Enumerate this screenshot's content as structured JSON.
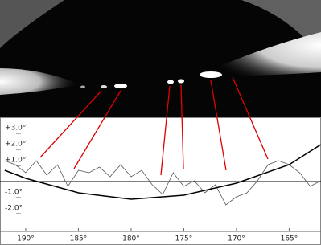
{
  "chart_data": {
    "type": "line",
    "x": [
      192,
      191,
      190,
      189,
      188,
      187,
      186,
      185,
      184,
      183,
      182,
      181,
      180,
      179,
      178,
      177,
      176,
      175,
      174,
      173,
      172,
      171,
      170,
      169,
      168,
      167,
      166,
      165,
      164,
      163,
      162
    ],
    "series": [
      {
        "color": "#555555",
        "values": [
          1.3,
          1.05,
          0.55,
          1.3,
          0.4,
          1.05,
          -0.3,
          0.7,
          0.55,
          0.9,
          0.3,
          1.05,
          0.3,
          0.7,
          -0.2,
          -0.8,
          0.55,
          -0.3,
          0.05,
          -0.7,
          -0.2,
          -1.45,
          -0.95,
          -0.7,
          0.05,
          1.05,
          1.3,
          1.05,
          0.55,
          -0.3,
          0.05
        ]
      },
      {
        "color": "#000000",
        "values": [
          0.7,
          null,
          0.2,
          null,
          null,
          null,
          null,
          -0.7,
          null,
          null,
          null,
          null,
          -1.1,
          null,
          null,
          null,
          null,
          -0.85,
          null,
          null,
          null,
          null,
          -0.1,
          null,
          null,
          null,
          null,
          1.05,
          null,
          null,
          2.3
        ]
      }
    ],
    "xlim": [
      192.44,
      161.98
    ],
    "ylim": [
      -3.1,
      3.9
    ],
    "xticks": [
      {
        "value": 190,
        "label": "190°"
      },
      {
        "value": 185,
        "label": "185°"
      },
      {
        "value": 180,
        "label": "180°"
      },
      {
        "value": 175,
        "label": "175°"
      },
      {
        "value": 170,
        "label": "170°"
      },
      {
        "value": 165,
        "label": "165°"
      }
    ],
    "yticks": [
      {
        "value": 3,
        "label": "+3.0°"
      },
      {
        "value": 2,
        "label": "+2.0°"
      },
      {
        "value": 1,
        "label": "+1.0°"
      },
      {
        "value": -1,
        "label": "-1.0°"
      },
      {
        "value": -2,
        "label": "-2.0°"
      }
    ]
  }
}
